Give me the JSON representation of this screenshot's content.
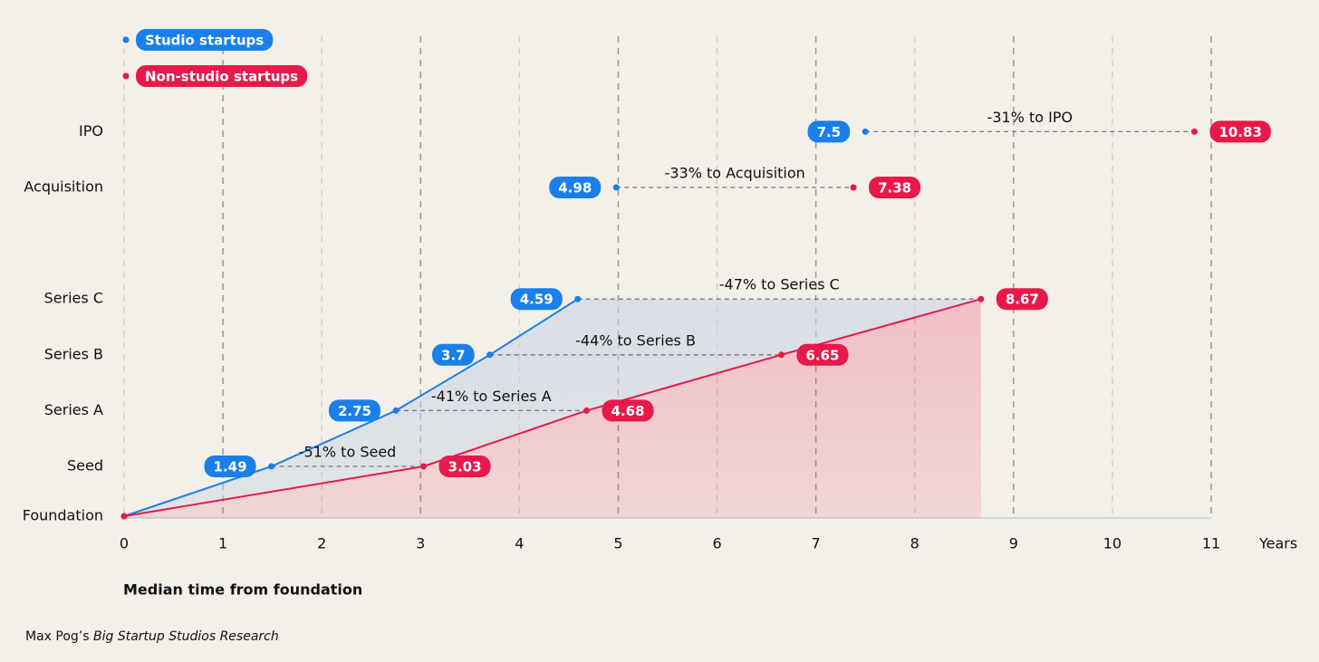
{
  "chart_data": {
    "type": "line",
    "categories": [
      "Foundation",
      "Seed",
      "Series A",
      "Series B",
      "Series C",
      null,
      "Acquisition",
      "IPO"
    ],
    "series": [
      {
        "name": "Studio startups",
        "color": "#1a7fe8",
        "values": [
          0,
          1.49,
          2.75,
          3.7,
          4.59,
          null,
          4.98,
          7.5
        ]
      },
      {
        "name": "Non-studio startups",
        "color": "#e8194a",
        "values": [
          0,
          3.03,
          4.68,
          6.65,
          8.67,
          null,
          7.38,
          10.83
        ]
      }
    ],
    "gap_labels": [
      null,
      "-51% to Seed",
      "-41% to Series A",
      "-44% to Series B",
      "-47% to Series C",
      null,
      "-33% to Acquisition",
      "-31% to IPO"
    ],
    "xlim": [
      0,
      11
    ],
    "xticks": [
      0,
      1,
      2,
      3,
      4,
      5,
      6,
      7,
      8,
      9,
      10,
      11
    ],
    "x_unit": "Years",
    "xlabel": "Median time from foundation",
    "grid": true,
    "legend": "top-left",
    "source_prefix": "Max Pog’s",
    "source_title": "Big Startup Studios Research"
  }
}
